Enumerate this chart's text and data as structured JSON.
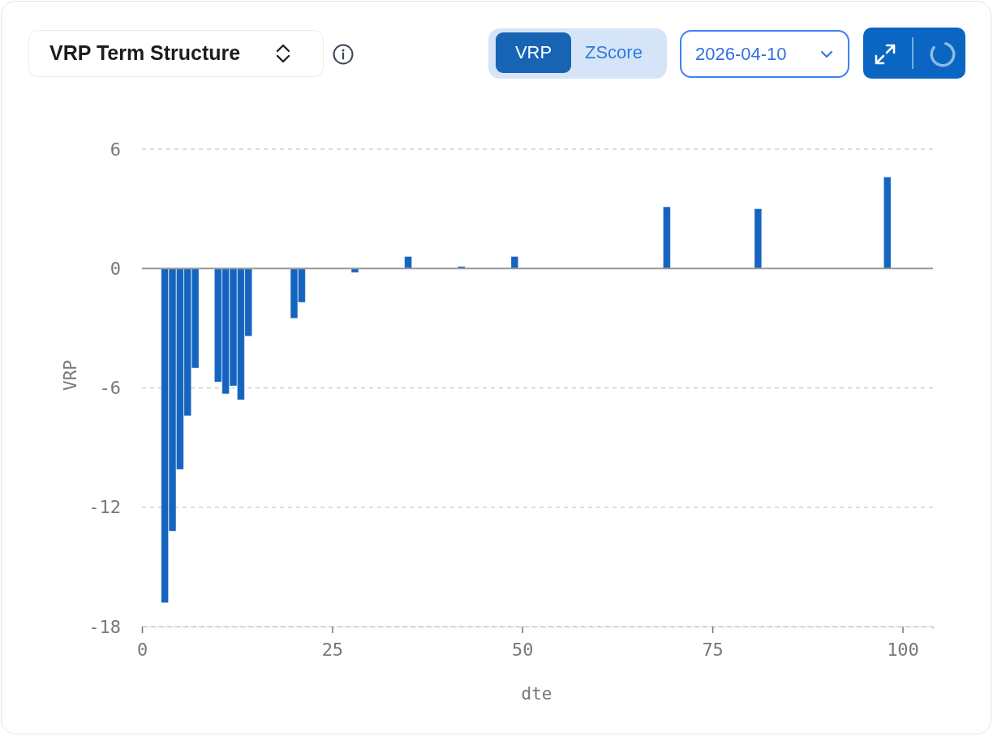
{
  "chart_data": {
    "type": "bar",
    "title": "VRP Term Structure",
    "xlabel": "dte",
    "ylabel": "VRP",
    "x": [
      3,
      4,
      5,
      6,
      7,
      10,
      11,
      12,
      13,
      14,
      20,
      21,
      28,
      35,
      42,
      49,
      69,
      81,
      98
    ],
    "values": [
      -16.8,
      -13.2,
      -10.1,
      -7.4,
      -5.0,
      -5.7,
      -6.3,
      -5.9,
      -6.6,
      -3.4,
      -2.5,
      -1.7,
      -0.2,
      0.6,
      0.1,
      0.6,
      3.1,
      3.0,
      4.6
    ],
    "color": "#1565c0",
    "xlim": [
      0,
      104
    ],
    "xticks": [
      0,
      25,
      50,
      75,
      100
    ],
    "ylim": [
      -18,
      6
    ],
    "yticks": [
      -18,
      -12,
      -6,
      0,
      6
    ],
    "grid": "y",
    "ref_lines": [
      {
        "axis": "y",
        "value": 0,
        "color": "#999999"
      }
    ],
    "annotations": [
      "VRP",
      "ZScore",
      "2026-04-10"
    ]
  }
}
